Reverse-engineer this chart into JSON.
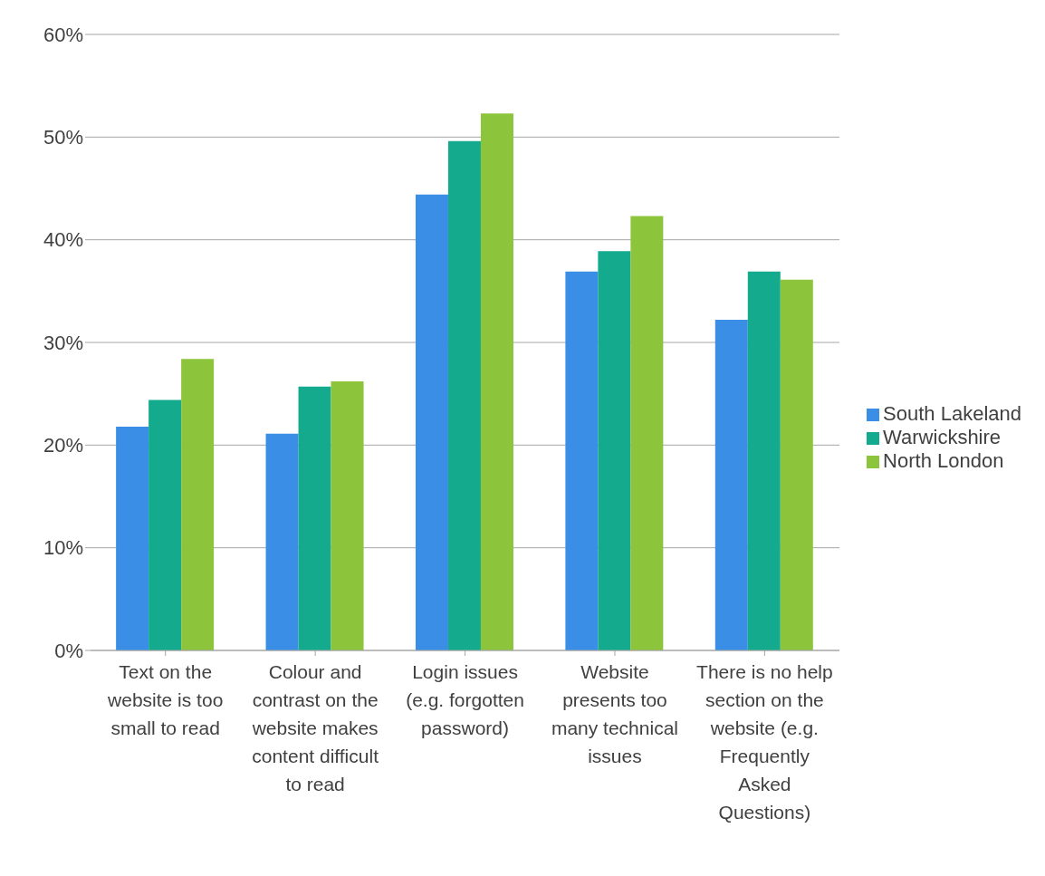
{
  "chart_data": {
    "type": "bar",
    "categories": [
      "Text on the website is too small to read",
      "Colour and contrast on the website makes content difficult to read",
      "Login issues (e.g. forgotten password)",
      "Website presents too many technical issues",
      "There is no help section on the website (e.g. Frequently Asked Questions)"
    ],
    "series": [
      {
        "name": "South Lakeland",
        "color": "#3a8ee6",
        "values": [
          21.8,
          21.1,
          44.4,
          36.9,
          32.2
        ]
      },
      {
        "name": "Warwickshire",
        "color": "#14aa8e",
        "values": [
          24.4,
          25.7,
          49.6,
          38.9,
          36.9
        ]
      },
      {
        "name": "North London",
        "color": "#8cc43c",
        "values": [
          28.4,
          26.2,
          52.3,
          42.3,
          36.1
        ]
      }
    ],
    "ylim": [
      0,
      60
    ],
    "yticks": [
      {
        "value": 0,
        "label": "0%"
      },
      {
        "value": 10,
        "label": "10%"
      },
      {
        "value": 20,
        "label": "20%"
      },
      {
        "value": 30,
        "label": "30%"
      },
      {
        "value": 40,
        "label": "40%"
      },
      {
        "value": 50,
        "label": "50%"
      },
      {
        "value": 60,
        "label": "60%"
      }
    ],
    "grid": "y",
    "legend": "right"
  }
}
